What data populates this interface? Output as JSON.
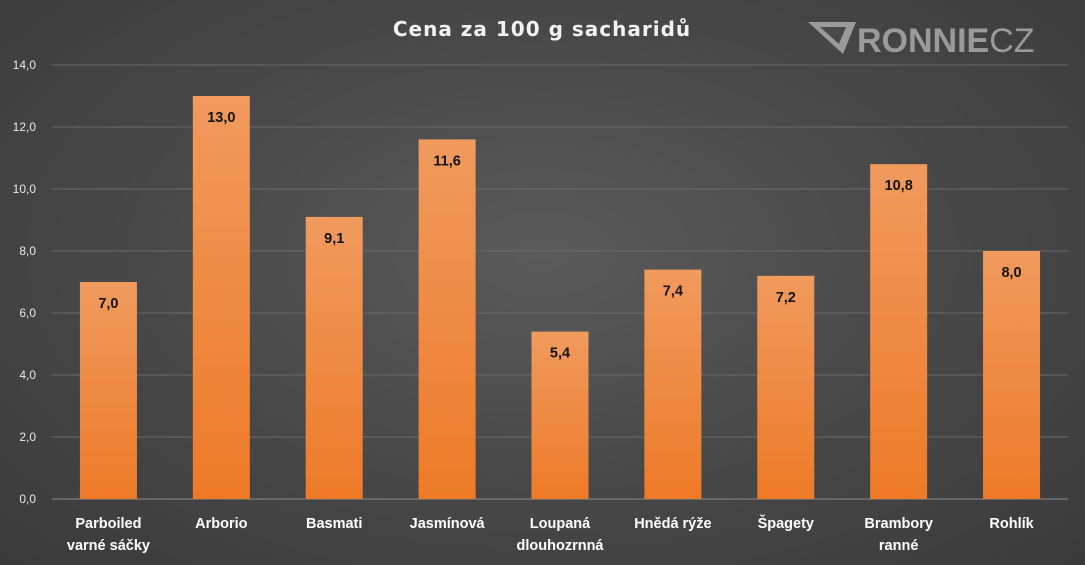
{
  "chart_data": {
    "type": "bar",
    "title": "Cena za 100 g sacharidů",
    "categories": [
      [
        "Parboiled",
        "varné sáčky"
      ],
      [
        "Arborio"
      ],
      [
        "Basmati"
      ],
      [
        "Jasmínová"
      ],
      [
        "Loupaná",
        "dlouhozrnná"
      ],
      [
        "Hnědá rýže"
      ],
      [
        "Špagety"
      ],
      [
        "Brambory",
        "ranné"
      ],
      [
        "Rohlík"
      ]
    ],
    "values": [
      7.0,
      13.0,
      9.1,
      11.6,
      5.4,
      7.4,
      7.2,
      10.8,
      8.0
    ],
    "value_labels": [
      "7,0",
      "13,0",
      "9,1",
      "11,6",
      "5,4",
      "7,4",
      "7,2",
      "10,8",
      "8,0"
    ],
    "ylim": [
      0,
      14
    ],
    "yticks": [
      "0,0",
      "2,0",
      "4,0",
      "6,0",
      "8,0",
      "10,0",
      "12,0",
      "14,0"
    ],
    "grid": true,
    "legend": "none",
    "colors": {
      "bar_top": "#f09a5e",
      "bar_bottom": "#ee7a27",
      "value_label": "#141414"
    }
  },
  "watermark": {
    "logo_text": "RONNIE",
    "logo_suffix": "CZ"
  }
}
